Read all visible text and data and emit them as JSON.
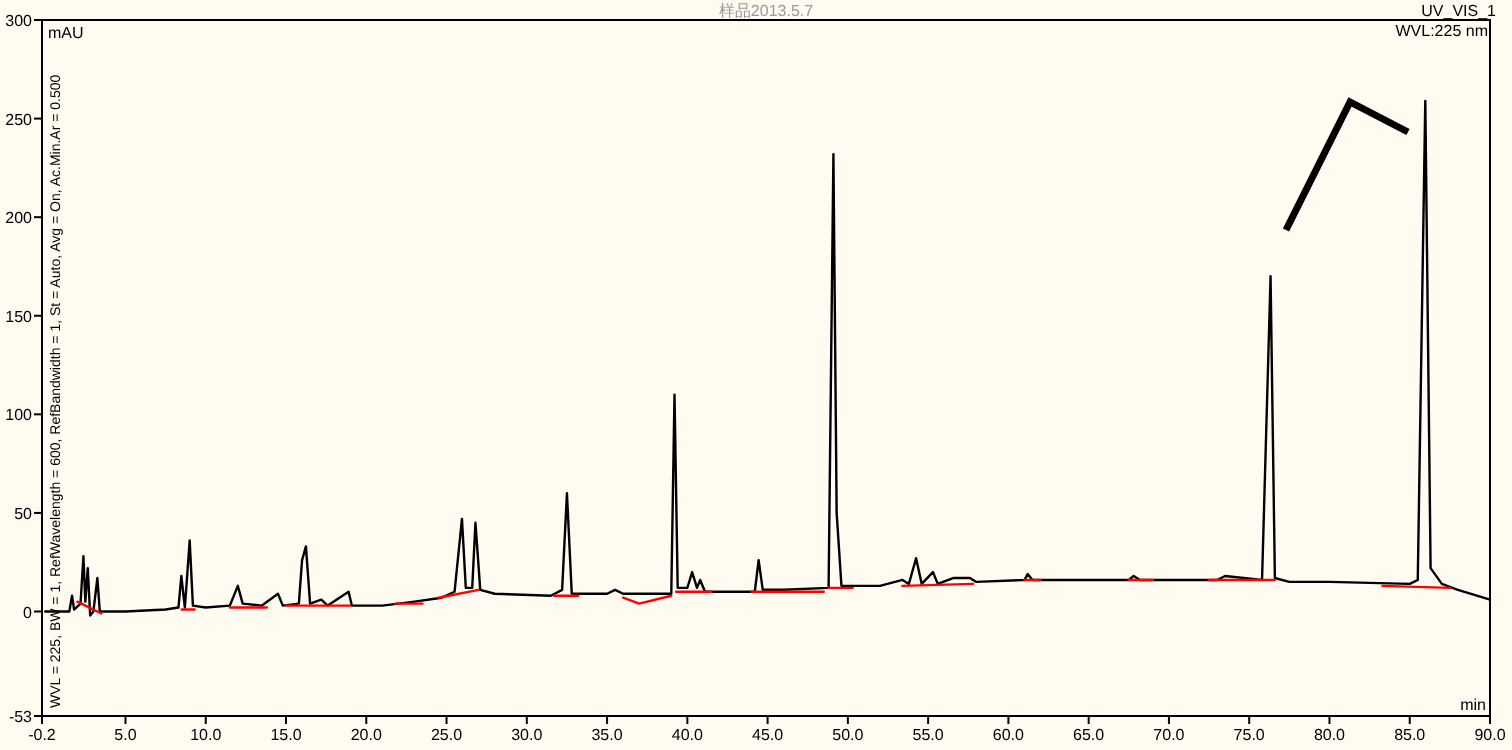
{
  "chart_data": {
    "type": "line",
    "title": "样品2013.5.7",
    "xlabel": "min",
    "ylabel": "mAU",
    "annotations": [
      "UV_VIS_1",
      "WVL:225 nm",
      "WVL = 225, BW = 1, RefWavelength = 600, RefBandwidth = 1, St = Auto, Avg = On, Ac.Min.Ar = 0.500"
    ],
    "xlim": [
      -0.2,
      90
    ],
    "xticks": [
      {
        "value": -0.2,
        "label": "-0.2"
      },
      {
        "value": 5,
        "label": "5.0"
      },
      {
        "value": 10,
        "label": "10.0"
      },
      {
        "value": 15,
        "label": "15.0"
      },
      {
        "value": 20,
        "label": "20.0"
      },
      {
        "value": 25,
        "label": "25.0"
      },
      {
        "value": 30,
        "label": "30.0"
      },
      {
        "value": 35,
        "label": "35.0"
      },
      {
        "value": 40,
        "label": "40.0"
      },
      {
        "value": 45,
        "label": "45.0"
      },
      {
        "value": 50,
        "label": "50.0"
      },
      {
        "value": 55,
        "label": "55.0"
      },
      {
        "value": 60,
        "label": "60.0"
      },
      {
        "value": 65,
        "label": "65.0"
      },
      {
        "value": 70,
        "label": "70.0"
      },
      {
        "value": 75,
        "label": "75.0"
      },
      {
        "value": 80,
        "label": "80.0"
      },
      {
        "value": 85,
        "label": "85.0"
      },
      {
        "value": 90,
        "label": "90.0"
      }
    ],
    "ylim": [
      -53,
      300
    ],
    "yticks": [
      -53,
      0,
      50,
      100,
      150,
      200,
      250,
      300
    ],
    "series": [
      {
        "color": "#000000",
        "x": [
          0,
          1.5,
          1.67,
          1.8,
          2.2,
          2.38,
          2.5,
          2.65,
          2.8,
          3.0,
          3.25,
          3.4,
          5,
          7.5,
          8.3,
          8.48,
          8.7,
          9.0,
          9.2,
          10,
          11.5,
          12.0,
          12.3,
          13.5,
          14.5,
          14.8,
          15.8,
          16.0,
          16.24,
          16.5,
          17.2,
          17.6,
          18.9,
          19.1,
          21,
          23,
          24.7,
          25.5,
          25.96,
          26.2,
          26.6,
          26.8,
          27.1,
          28,
          31.5,
          32.2,
          32.5,
          32.8,
          35,
          35.5,
          36,
          39,
          39.2,
          39.4,
          40.0,
          40.3,
          40.6,
          40.8,
          41.1,
          44.2,
          44.44,
          44.7,
          46,
          48.8,
          49.1,
          49.3,
          49.6,
          52,
          53.4,
          53.8,
          54.25,
          54.6,
          55.3,
          55.6,
          56.6,
          57.6,
          58,
          61,
          61.2,
          61.5,
          67.5,
          67.8,
          68.2,
          73,
          73.5,
          75.8,
          76.33,
          76.6,
          77.5,
          80,
          85,
          85.5,
          85.97,
          86.3,
          87,
          88,
          90
        ],
        "values": [
          0,
          0,
          8,
          1,
          4,
          28,
          5,
          22,
          -2,
          0,
          17,
          0,
          0,
          1,
          2,
          18,
          2,
          36,
          3,
          2,
          3,
          13,
          4,
          3,
          9,
          3,
          4,
          26,
          33,
          4,
          6,
          3,
          10,
          3,
          3,
          5,
          7,
          10,
          47,
          12,
          12,
          45,
          11,
          9,
          8,
          11,
          60,
          9,
          9,
          11,
          9,
          9,
          110,
          12,
          12,
          20,
          12,
          16,
          10,
          10,
          26,
          11,
          11,
          12,
          232,
          50,
          13,
          13,
          16,
          14,
          27,
          14,
          20,
          14,
          17,
          17,
          15,
          16,
          19,
          16,
          16,
          18,
          16,
          16,
          18,
          16,
          170,
          17,
          15,
          15,
          14,
          16,
          259,
          22,
          14,
          11,
          6
        ]
      },
      {
        "color": "#ff0000",
        "x": [
          2.0,
          3.5
        ],
        "values": [
          5,
          -1
        ]
      },
      {
        "color": "#ff0000",
        "x": [
          8.5,
          9.3
        ],
        "values": [
          1,
          1
        ]
      },
      {
        "color": "#ff0000",
        "x": [
          11.5,
          13.8
        ],
        "values": [
          2,
          2
        ]
      },
      {
        "color": "#ff0000",
        "x": [
          15,
          19
        ],
        "values": [
          3,
          3
        ]
      },
      {
        "color": "#ff0000",
        "x": [
          21.8,
          23.5
        ],
        "values": [
          4,
          4
        ]
      },
      {
        "color": "#ff0000",
        "x": [
          24.5,
          27
        ],
        "values": [
          7,
          11
        ]
      },
      {
        "color": "#ff0000",
        "x": [
          31.7,
          33.2
        ],
        "values": [
          8,
          8
        ]
      },
      {
        "color": "#ff0000",
        "x": [
          36,
          37,
          39
        ],
        "values": [
          7,
          4,
          8
        ]
      },
      {
        "color": "#ff0000",
        "x": [
          39.3,
          41.5
        ],
        "values": [
          10,
          10
        ]
      },
      {
        "color": "#ff0000",
        "x": [
          44,
          48.5
        ],
        "values": [
          10,
          10
        ]
      },
      {
        "color": "#ff0000",
        "x": [
          48.8,
          50.3
        ],
        "values": [
          12,
          12
        ]
      },
      {
        "color": "#ff0000",
        "x": [
          53.4,
          57.8
        ],
        "values": [
          13,
          14
        ]
      },
      {
        "color": "#ff0000",
        "x": [
          61,
          62
        ],
        "values": [
          16,
          16
        ]
      },
      {
        "color": "#ff0000",
        "x": [
          67.5,
          69
        ],
        "values": [
          16,
          16
        ]
      },
      {
        "color": "#ff0000",
        "x": [
          72.5,
          76.6
        ],
        "values": [
          16,
          16
        ]
      },
      {
        "color": "#ff0000",
        "x": [
          83.3,
          87.5
        ],
        "values": [
          13,
          12
        ]
      }
    ]
  }
}
